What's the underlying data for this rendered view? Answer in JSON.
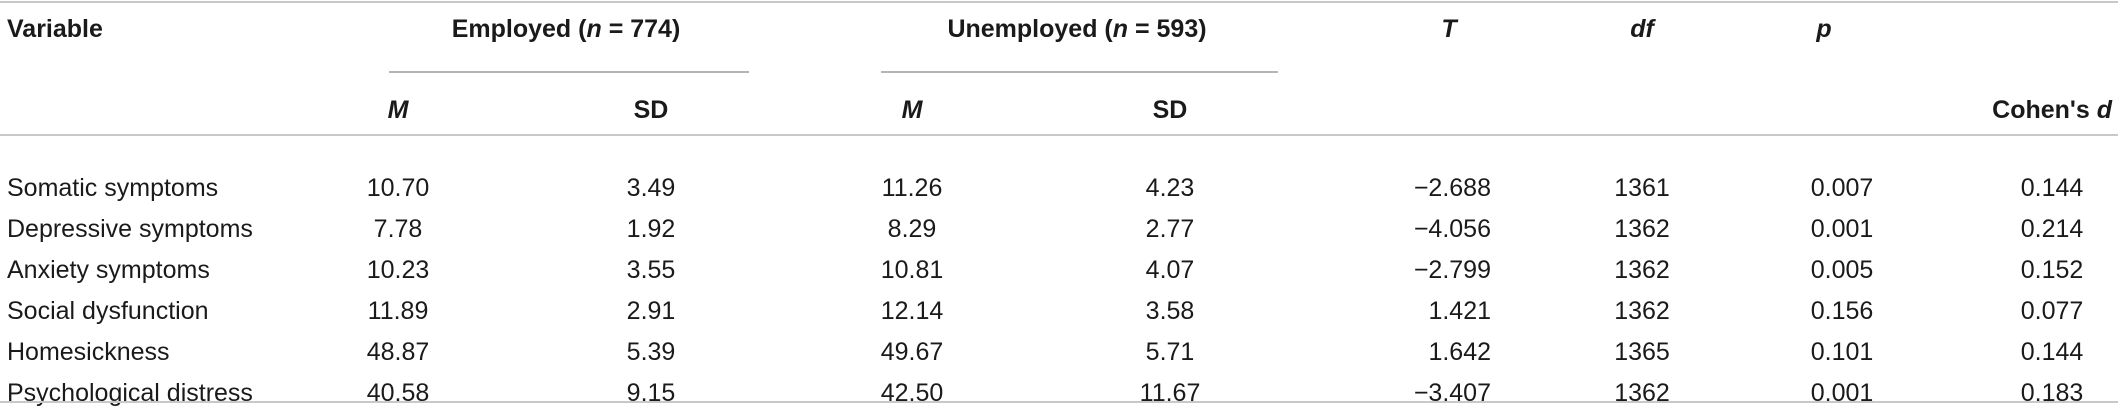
{
  "table": {
    "header": {
      "variable": "Variable",
      "employed_label": "Employed (",
      "employed_n": "n",
      "employed_count": " = 774)",
      "unemployed_label": "Unemployed (",
      "unemployed_n": "n",
      "unemployed_count": " = 593)",
      "t": "T",
      "df": "df",
      "p": "p",
      "m1": "M",
      "sd1": "SD",
      "m2": "M",
      "sd2": "SD",
      "cohens_prefix": "Cohen's ",
      "cohens_d": "d"
    },
    "rows": [
      {
        "variable": "Somatic symptoms",
        "emp_m": "10.70",
        "emp_sd": "3.49",
        "unemp_m": "11.26",
        "unemp_sd": "4.23",
        "t": "−2.688",
        "df": "1361",
        "p": "0.007",
        "d": "0.144"
      },
      {
        "variable": "Depressive symptoms",
        "emp_m": "7.78",
        "emp_sd": "1.92",
        "unemp_m": "8.29",
        "unemp_sd": "2.77",
        "t": "−4.056",
        "df": "1362",
        "p": "0.001",
        "d": "0.214"
      },
      {
        "variable": "Anxiety symptoms",
        "emp_m": "10.23",
        "emp_sd": "3.55",
        "unemp_m": "10.81",
        "unemp_sd": "4.07",
        "t": "−2.799",
        "df": "1362",
        "p": "0.005",
        "d": "0.152"
      },
      {
        "variable": "Social dysfunction",
        "emp_m": "11.89",
        "emp_sd": "2.91",
        "unemp_m": "12.14",
        "unemp_sd": "3.58",
        "t": "1.421",
        "df": "1362",
        "p": "0.156",
        "d": "0.077"
      },
      {
        "variable": "Homesickness",
        "emp_m": "48.87",
        "emp_sd": "5.39",
        "unemp_m": "49.67",
        "unemp_sd": "5.71",
        "t": "1.642",
        "df": "1365",
        "p": "0.101",
        "d": "0.144"
      },
      {
        "variable": "Psychological distress",
        "emp_m": "40.58",
        "emp_sd": "9.15",
        "unemp_m": "42.50",
        "unemp_sd": "11.67",
        "t": "−3.407",
        "df": "1362",
        "p": "0.001",
        "d": "0.183"
      }
    ]
  }
}
